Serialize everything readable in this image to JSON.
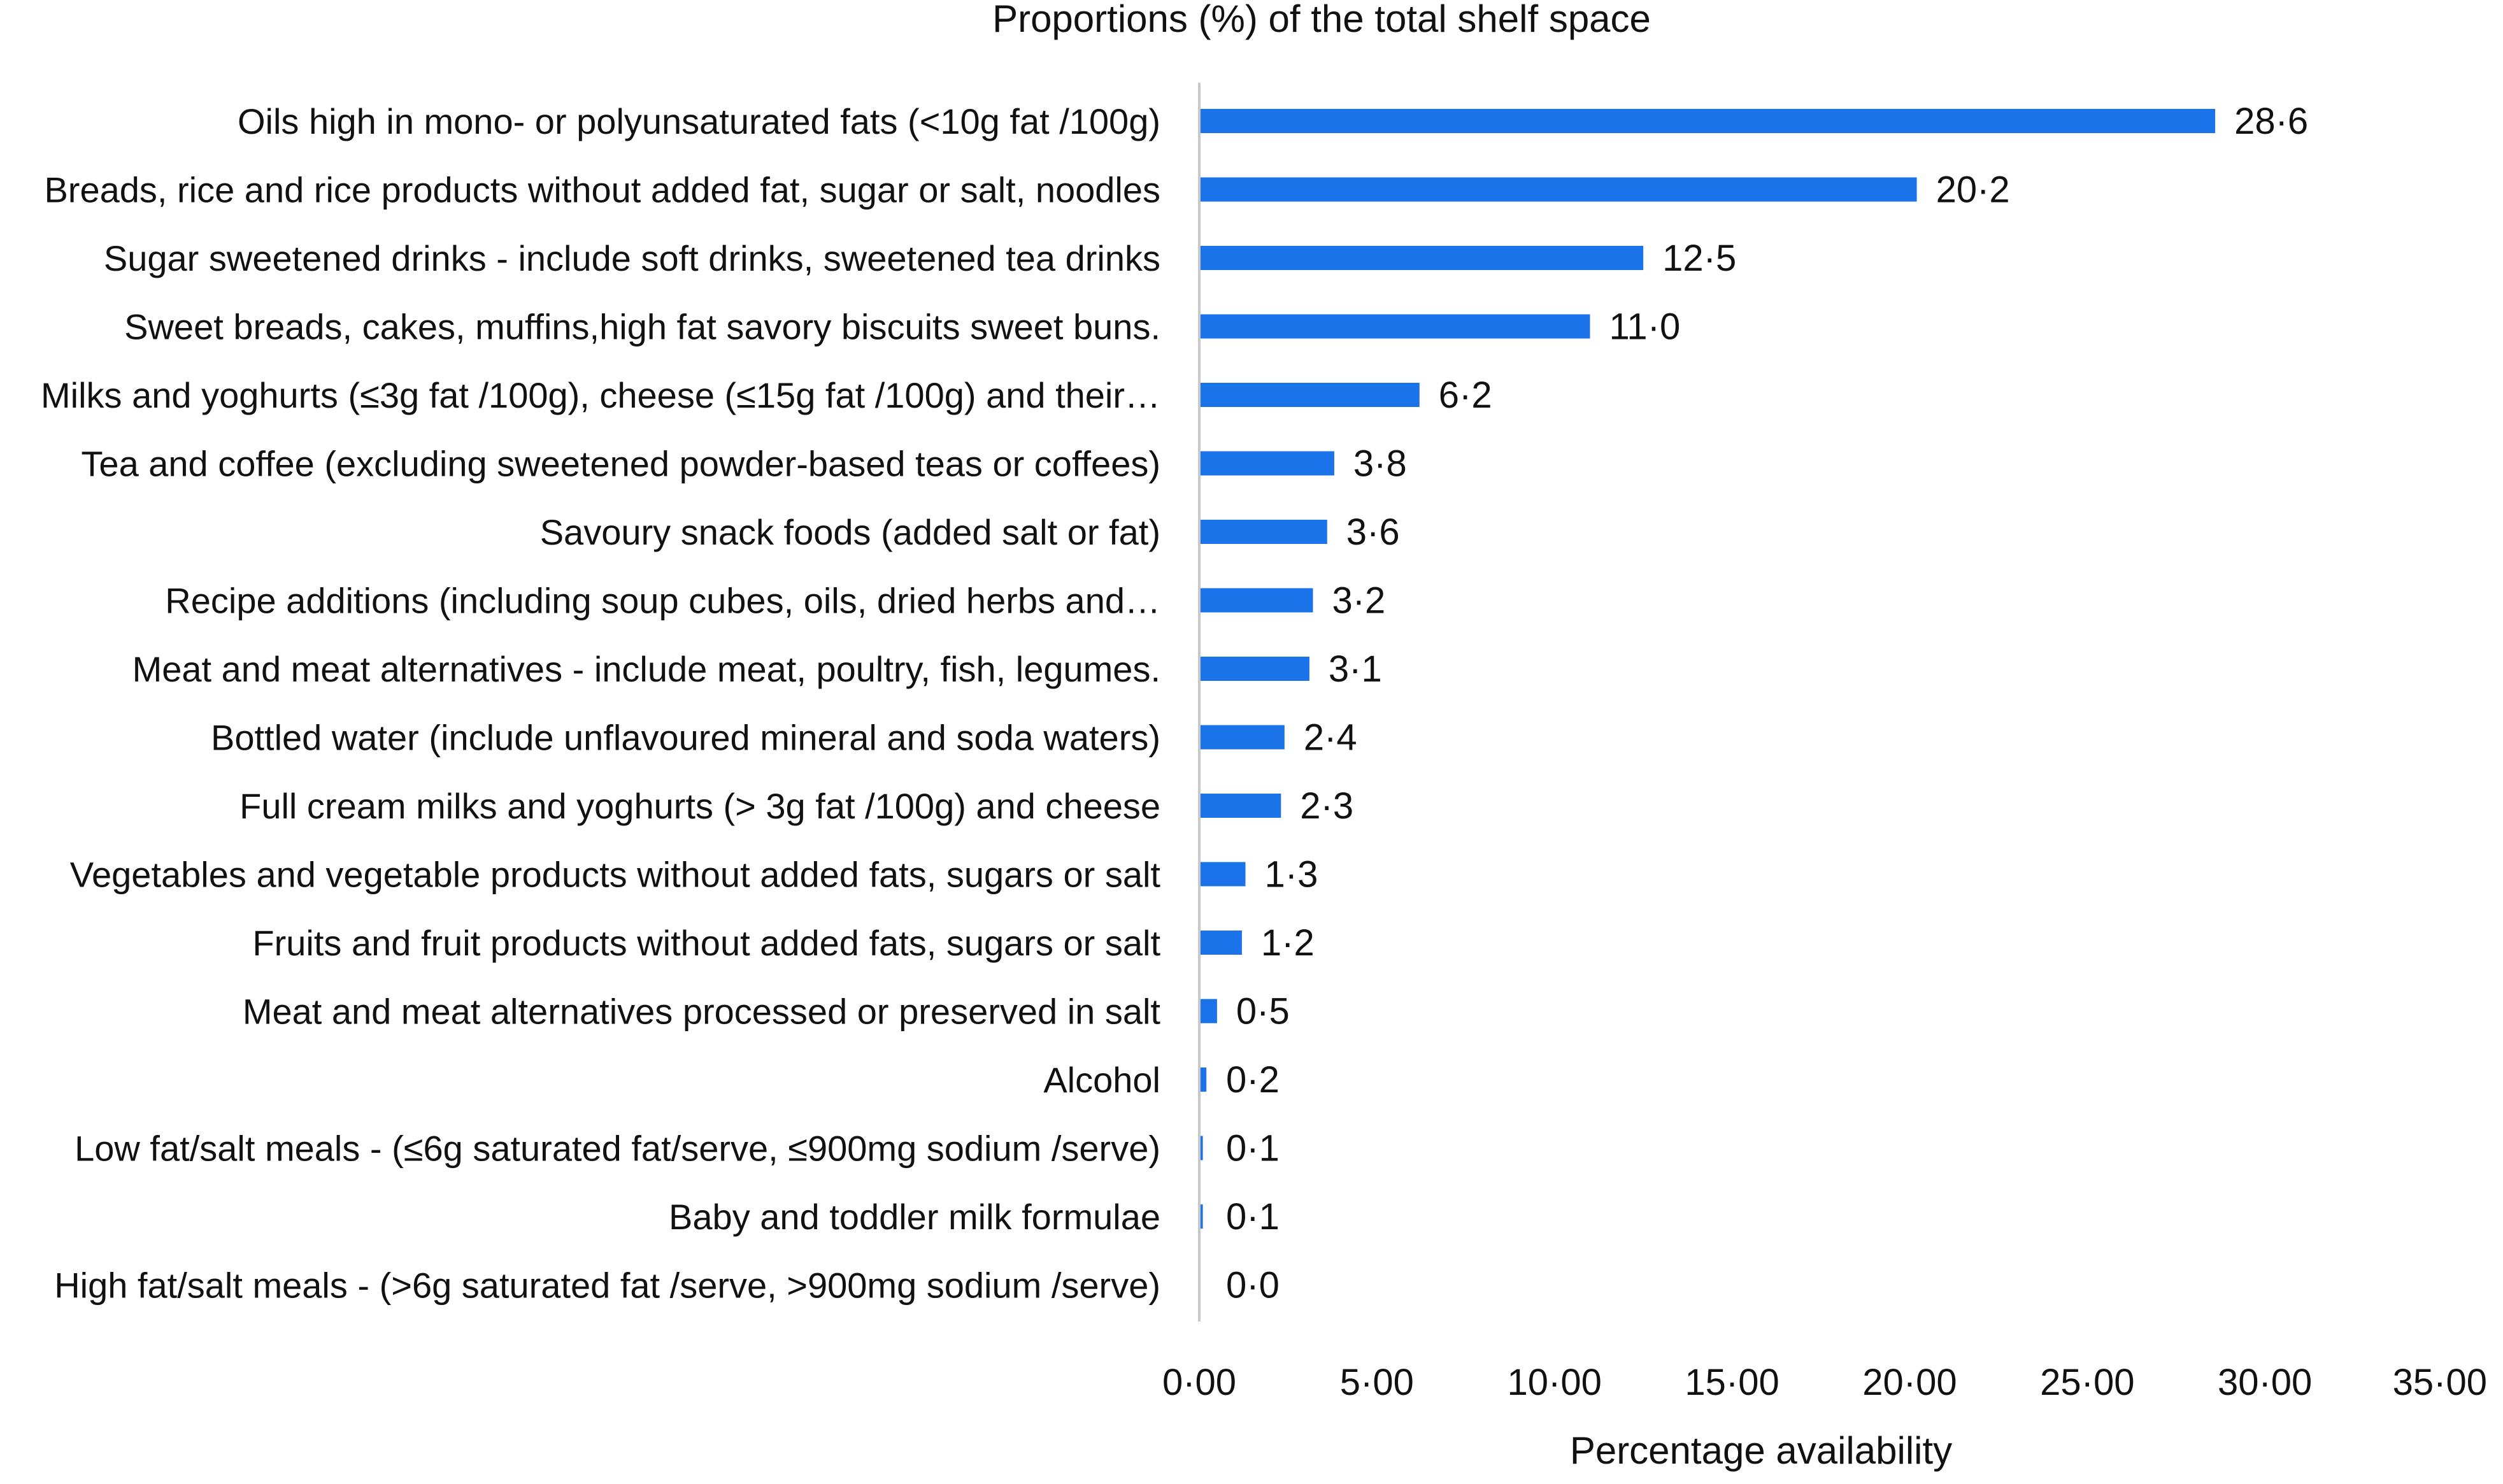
{
  "chart_data": {
    "type": "bar",
    "orientation": "horizontal",
    "title": "Proportions (%) of the total shelf space",
    "xlabel": "Percentage availability",
    "ylabel": "",
    "xlim": [
      0,
      35
    ],
    "xticks": [
      0,
      5,
      10,
      15,
      20,
      25,
      30,
      35
    ],
    "xtick_labels": [
      "0·00",
      "5·00",
      "10·00",
      "15·00",
      "20·00",
      "25·00",
      "30·00",
      "35·00"
    ],
    "grid": false,
    "legend": "none",
    "bar_color": "#1a73e8",
    "categories": [
      "Oils high in mono- or polyunsaturated fats (<10g fat /100g)",
      "Breads, rice and rice products without added fat, sugar or salt, noodles",
      "Sugar sweetened drinks - include soft drinks, sweetened tea drinks",
      "Sweet breads, cakes, muffins,high fat savory biscuits sweet buns.",
      "Milks and yoghurts (≤3g fat /100g), cheese (≤15g fat /100g) and their…",
      "Tea and coffee (excluding sweetened powder-based teas or coffees)",
      "Savoury snack foods (added salt or fat)",
      "Recipe additions (including soup cubes, oils, dried herbs and…",
      "Meat and meat alternatives - include meat, poultry, fish, legumes.",
      "Bottled water (include unflavoured mineral and soda waters)",
      "Full cream milks and yoghurts (> 3g fat /100g) and cheese",
      "Vegetables and vegetable products without added fats, sugars or salt",
      "Fruits and fruit products without added fats, sugars or salt",
      "Meat and meat alternatives processed or preserved in salt",
      "Alcohol",
      "Low fat/salt meals - (≤6g saturated fat/serve, ≤900mg sodium /serve)",
      "Baby and toddler milk formulae",
      "High fat/salt meals - (>6g saturated fat /serve, >900mg sodium /serve)"
    ],
    "values": [
      28.6,
      20.2,
      12.5,
      11.0,
      6.2,
      3.8,
      3.6,
      3.2,
      3.1,
      2.4,
      2.3,
      1.3,
      1.2,
      0.5,
      0.2,
      0.1,
      0.1,
      0.0
    ],
    "value_labels": [
      "28·6",
      "20·2",
      "12·5",
      "11·0",
      "6·2",
      "3·8",
      "3·6",
      "3·2",
      "3·1",
      "2·4",
      "2·3",
      "1·3",
      "1·2",
      "0·5",
      "0·2",
      "0·1",
      "0·1",
      "0·0"
    ]
  }
}
